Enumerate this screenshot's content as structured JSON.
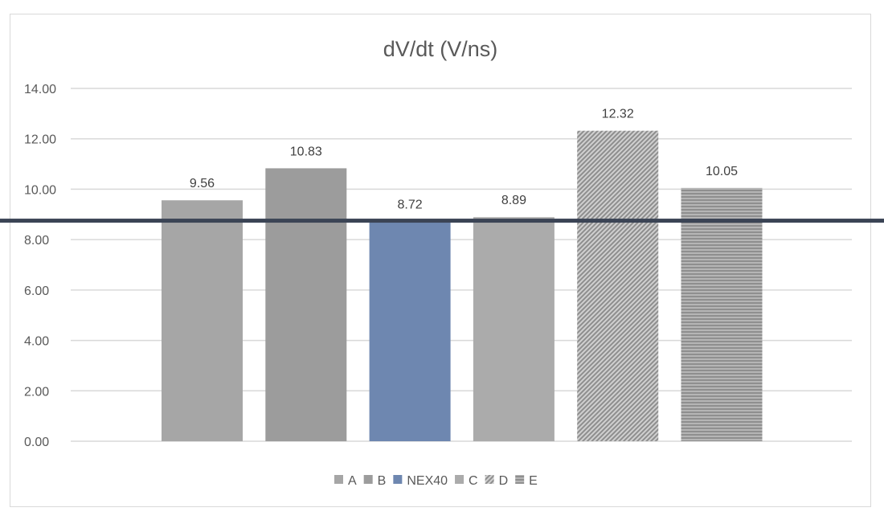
{
  "chart_data": {
    "type": "bar",
    "title": "dV/dt (V/ns)",
    "xlabel": "",
    "ylabel": "",
    "ylim": [
      0,
      14
    ],
    "yticks": [
      "0.00",
      "2.00",
      "4.00",
      "6.00",
      "8.00",
      "10.00",
      "12.00",
      "14.00"
    ],
    "grid": true,
    "legend_position": "bottom",
    "series": [
      {
        "name": "A",
        "value": 9.56,
        "label": "9.56",
        "color": "#a6a6a6",
        "pattern": "solid"
      },
      {
        "name": "B",
        "value": 10.83,
        "label": "10.83",
        "color": "#9c9c9c",
        "pattern": "solid"
      },
      {
        "name": "NEX40",
        "value": 8.72,
        "label": "8.72",
        "color": "#6e87b0",
        "pattern": "solid"
      },
      {
        "name": "C",
        "value": 8.89,
        "label": "8.89",
        "color": "#ababab",
        "pattern": "solid"
      },
      {
        "name": "D",
        "value": 12.32,
        "label": "12.32",
        "color": "#a0a0a0",
        "pattern": "diagonal"
      },
      {
        "name": "E",
        "value": 10.05,
        "label": "10.05",
        "color": "#9a9a9a",
        "pattern": "horizontal"
      }
    ],
    "reference_line": {
      "value": 8.72,
      "color": "#3b4455"
    }
  }
}
